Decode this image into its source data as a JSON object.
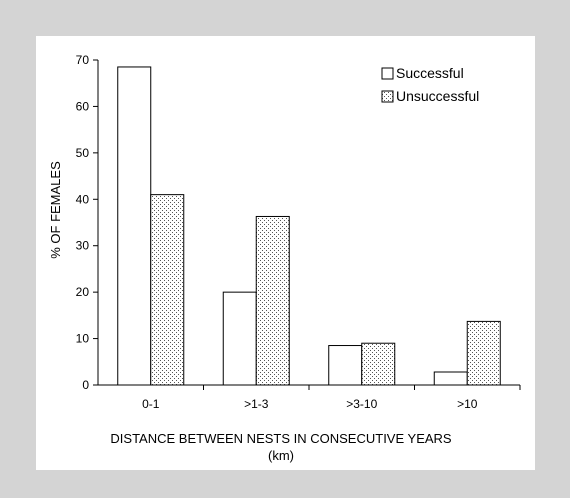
{
  "chart_data": {
    "type": "bar",
    "categories": [
      "0-1",
      ">1-3",
      ">3-10",
      ">10"
    ],
    "series": [
      {
        "name": "Successful",
        "values": [
          68.5,
          20.0,
          8.5,
          2.8
        ]
      },
      {
        "name": "Unsuccessful",
        "values": [
          41.0,
          36.3,
          9.0,
          13.7
        ]
      }
    ],
    "ylabel": "% OF FEMALES",
    "xlabel_line1": "DISTANCE BETWEEN NESTS IN CONSECUTIVE YEARS",
    "xlabel_line2": "(km)",
    "ylim": [
      0,
      70
    ],
    "yticks": [
      0,
      10,
      20,
      30,
      40,
      50,
      60,
      70
    ],
    "grid": false,
    "legend_position": "top-right"
  },
  "colors": {
    "background": "#d4d4d4",
    "panel": "#ffffff",
    "successful_fill": "#ffffff",
    "unsuccessful_pattern": "stippled"
  }
}
